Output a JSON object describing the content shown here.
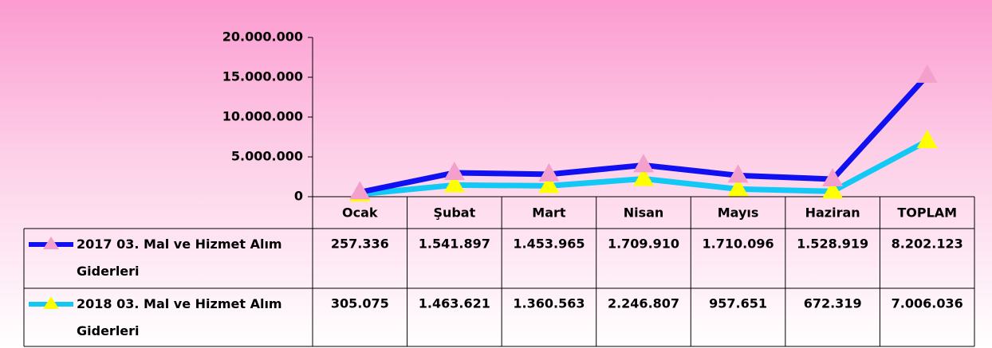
{
  "chart_data": {
    "type": "line",
    "stacked": true,
    "categories": [
      "Ocak",
      "Şubat",
      "Mart",
      "Nisan",
      "Mayıs",
      "Haziran",
      "TOPLAM"
    ],
    "series": [
      {
        "name": "2017 03. Mal ve Hizmet Alım Giderleri",
        "color": "#1010f0",
        "marker_color": "#f4a0cc",
        "values": [
          257336,
          1541897,
          1453965,
          1709910,
          1710096,
          1528919,
          8202123
        ],
        "value_labels": [
          "257.336",
          "1.541.897",
          "1.453.965",
          "1.709.910",
          "1.710.096",
          "1.528.919",
          "8.202.123"
        ]
      },
      {
        "name": "2018 03. Mal ve Hizmet Alım Giderleri",
        "color": "#12c8f5",
        "marker_color": "#ffff00",
        "values": [
          305075,
          1463621,
          1360563,
          2246807,
          957651,
          672319,
          7006036
        ],
        "value_labels": [
          "305.075",
          "1.463.621",
          "1.360.563",
          "2.246.807",
          "957.651",
          "672.319",
          "7.006.036"
        ]
      }
    ],
    "ylim": [
      0,
      20000000
    ],
    "yticks": [
      0,
      {
        "value": 5000000,
        "label": "5.000.000"
      },
      {
        "value": 10000000,
        "label": "10.000.000"
      },
      {
        "value": 15000000,
        "label": "15.000.000"
      },
      {
        "value": 20000000,
        "label": "20.000.000"
      }
    ]
  }
}
